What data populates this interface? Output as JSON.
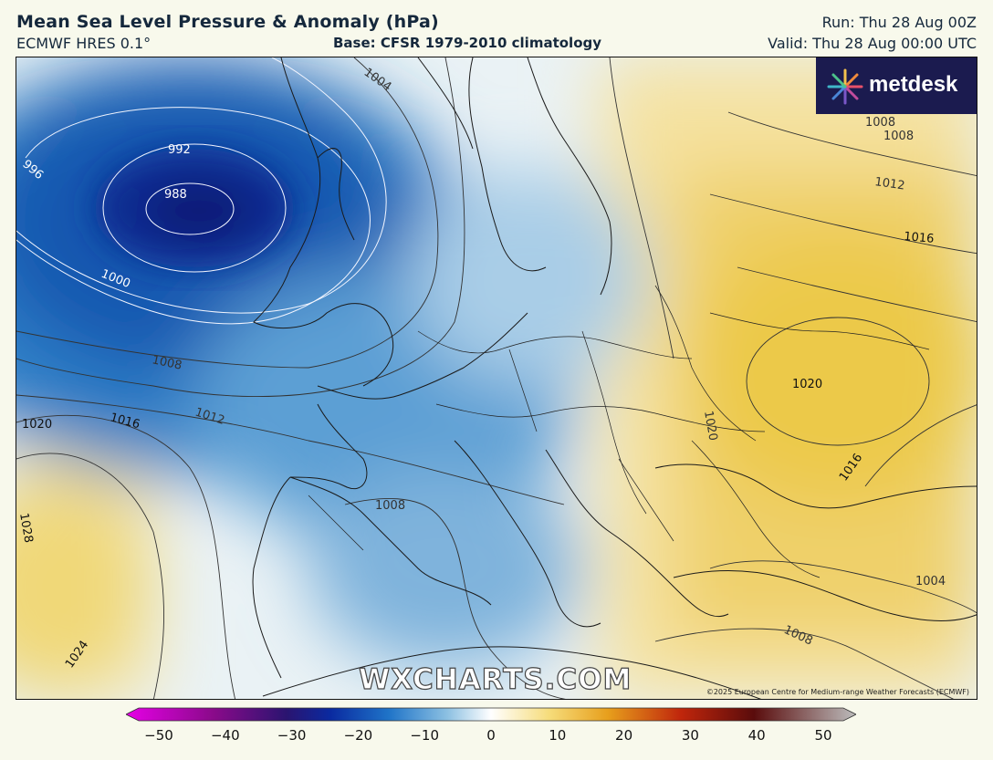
{
  "header": {
    "title": "Mean Sea Level Pressure & Anomaly (hPa)",
    "model": "ECMWF HRES 0.1°",
    "base": "Base: CFSR 1979-2010 climatology",
    "run": "Run: Thu 28 Aug 00Z",
    "valid": "Valid: Thu 28 Aug 00:00 UTC"
  },
  "logo": {
    "text": "metdesk"
  },
  "watermark": "WXCHARTS.COM",
  "copyright": "©2025 European Centre for Medium-range Weather Forecasts (ECMWF)",
  "colorbar": {
    "ticks": [
      "−50",
      "−40",
      "−30",
      "−20",
      "−10",
      "0",
      "10",
      "20",
      "30",
      "40",
      "50"
    ],
    "min": -50,
    "max": 50,
    "stops": [
      "#e600e6",
      "#8a0a8a",
      "#2a1470",
      "#0a2aa0",
      "#1f74c8",
      "#8cc0e2",
      "#ffffff",
      "#f6dc7a",
      "#e79f1c",
      "#c0260c",
      "#5a0c0c",
      "#bcbcbc"
    ]
  },
  "isobars": {
    "labels": [
      "992",
      "988",
      "996",
      "1000",
      "1004",
      "1008",
      "1008",
      "1012",
      "1016",
      "1020",
      "1020",
      "1016",
      "1012",
      "1008",
      "1008",
      "1028",
      "1024",
      "1020",
      "1016",
      "1004",
      "1008"
    ]
  }
}
